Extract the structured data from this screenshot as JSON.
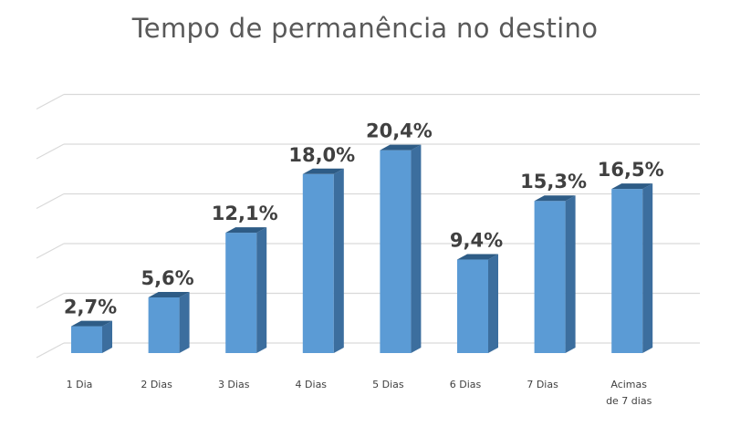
{
  "chart_data": {
    "type": "bar",
    "title": "Tempo de permanência no destino",
    "categories": [
      "1 Dia",
      "2 Dias",
      "3 Dias",
      "4 Dias",
      "5 Dias",
      "6 Dias",
      "7 Dias",
      "Acimas de 7 dias"
    ],
    "category_lines": [
      [
        "1 Dia"
      ],
      [
        "2 Dias"
      ],
      [
        "3 Dias"
      ],
      [
        "4 Dias"
      ],
      [
        "5 Dias"
      ],
      [
        "6 Dias"
      ],
      [
        "7 Dias"
      ],
      [
        "Acimas",
        "de 7 dias"
      ]
    ],
    "values": [
      2.7,
      5.6,
      12.1,
      18.0,
      20.4,
      9.4,
      15.3,
      16.5
    ],
    "value_labels": [
      "2,7%",
      "5,6%",
      "12,1%",
      "18,0%",
      "20,4%",
      "9,4%",
      "15,3%",
      "16,5%"
    ],
    "ylim": [
      0,
      25
    ],
    "grid": true,
    "bar_color": "#5B9BD5",
    "bar_side_color": "#3C6E9E",
    "bar_top_color": "#2E5C86",
    "grid_color": "#D9D9D9",
    "label_color": "#404040"
  }
}
